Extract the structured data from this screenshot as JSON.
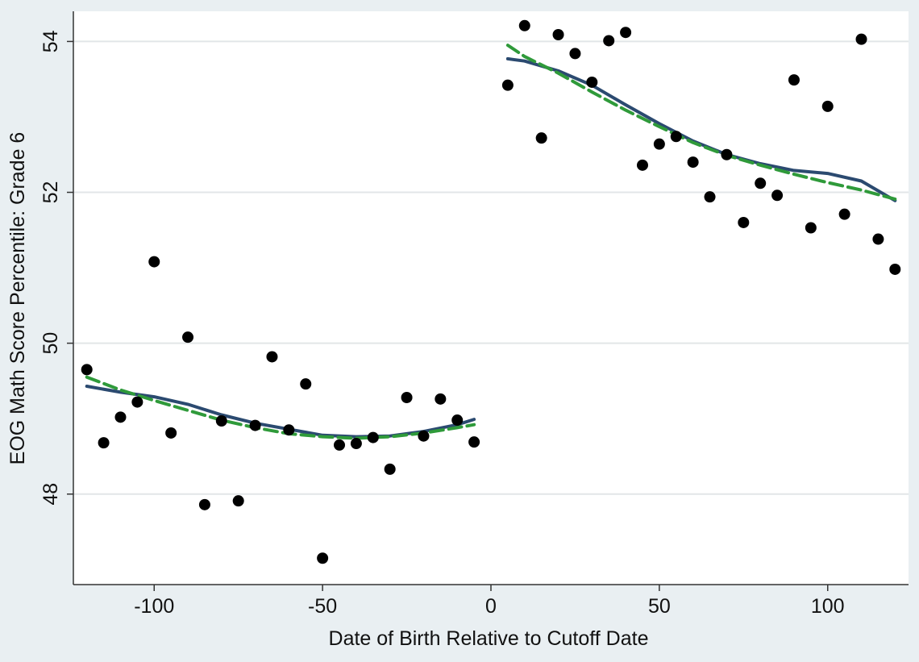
{
  "chart_data": {
    "type": "scatter",
    "title": "",
    "xlabel": "Date of Birth Relative to Cutoff Date",
    "ylabel": "EOG Math Score Percentile: Grade 6",
    "xlim": [
      -124,
      124
    ],
    "ylim": [
      46.8,
      54.4
    ],
    "xticks": [
      -100,
      -50,
      0,
      50,
      100
    ],
    "yticks": [
      48,
      50,
      52,
      54
    ],
    "grid": "horizontal",
    "legend": "none",
    "colors": {
      "background": "#e9eff2",
      "plot_area": "#ffffff",
      "points": "#000000",
      "solid_fit": "#2b4a70",
      "dashed_fit": "#2f9a3a"
    },
    "series": [
      {
        "kind": "points",
        "x": [
          -120,
          -115,
          -110,
          -105,
          -100,
          -95,
          -90,
          -85,
          -80,
          -75,
          -70,
          -65,
          -60,
          -55,
          -50,
          -45,
          -40,
          -35,
          -30,
          -25,
          -20,
          -15,
          -10,
          -5,
          5,
          10,
          15,
          20,
          25,
          30,
          35,
          40,
          45,
          50,
          55,
          60,
          65,
          70,
          75,
          80,
          85,
          90,
          95,
          100,
          105,
          110,
          115,
          120
        ],
        "y": [
          49.65,
          48.68,
          49.02,
          49.22,
          51.08,
          48.81,
          50.08,
          47.86,
          48.97,
          47.91,
          48.91,
          49.82,
          48.85,
          49.46,
          47.15,
          48.65,
          48.67,
          48.75,
          48.33,
          49.28,
          48.77,
          49.26,
          48.98,
          48.69,
          53.42,
          54.21,
          52.72,
          54.09,
          53.84,
          53.46,
          54.01,
          54.12,
          52.36,
          52.64,
          52.74,
          52.4,
          51.94,
          52.5,
          51.6,
          52.12,
          51.96,
          53.49,
          51.53,
          53.14,
          51.71,
          54.03,
          51.38,
          50.98
        ]
      },
      {
        "kind": "solid-fit-left",
        "x": [
          -120,
          -110,
          -100,
          -90,
          -80,
          -70,
          -60,
          -50,
          -40,
          -30,
          -20,
          -10,
          -5
        ],
        "y": [
          49.43,
          49.35,
          49.29,
          49.19,
          49.05,
          48.94,
          48.86,
          48.78,
          48.76,
          48.77,
          48.83,
          48.92,
          48.99
        ]
      },
      {
        "kind": "dashed-fit-left",
        "x": [
          -120,
          -110,
          -100,
          -90,
          -80,
          -70,
          -60,
          -50,
          -40,
          -30,
          -20,
          -10,
          -5
        ],
        "y": [
          49.55,
          49.38,
          49.24,
          49.11,
          48.98,
          48.88,
          48.8,
          48.76,
          48.74,
          48.76,
          48.81,
          48.88,
          48.92
        ]
      },
      {
        "kind": "solid-fit-right",
        "x": [
          5,
          10,
          20,
          30,
          40,
          50,
          60,
          70,
          80,
          90,
          100,
          110,
          120
        ],
        "y": [
          53.77,
          53.74,
          53.61,
          53.42,
          53.16,
          52.91,
          52.68,
          52.5,
          52.38,
          52.29,
          52.25,
          52.15,
          51.89
        ]
      },
      {
        "kind": "dashed-fit-right",
        "x": [
          5,
          10,
          20,
          30,
          40,
          50,
          60,
          70,
          80,
          90,
          100,
          110,
          120
        ],
        "y": [
          53.95,
          53.8,
          53.58,
          53.33,
          53.09,
          52.87,
          52.66,
          52.49,
          52.36,
          52.24,
          52.13,
          52.03,
          51.91
        ]
      }
    ]
  }
}
